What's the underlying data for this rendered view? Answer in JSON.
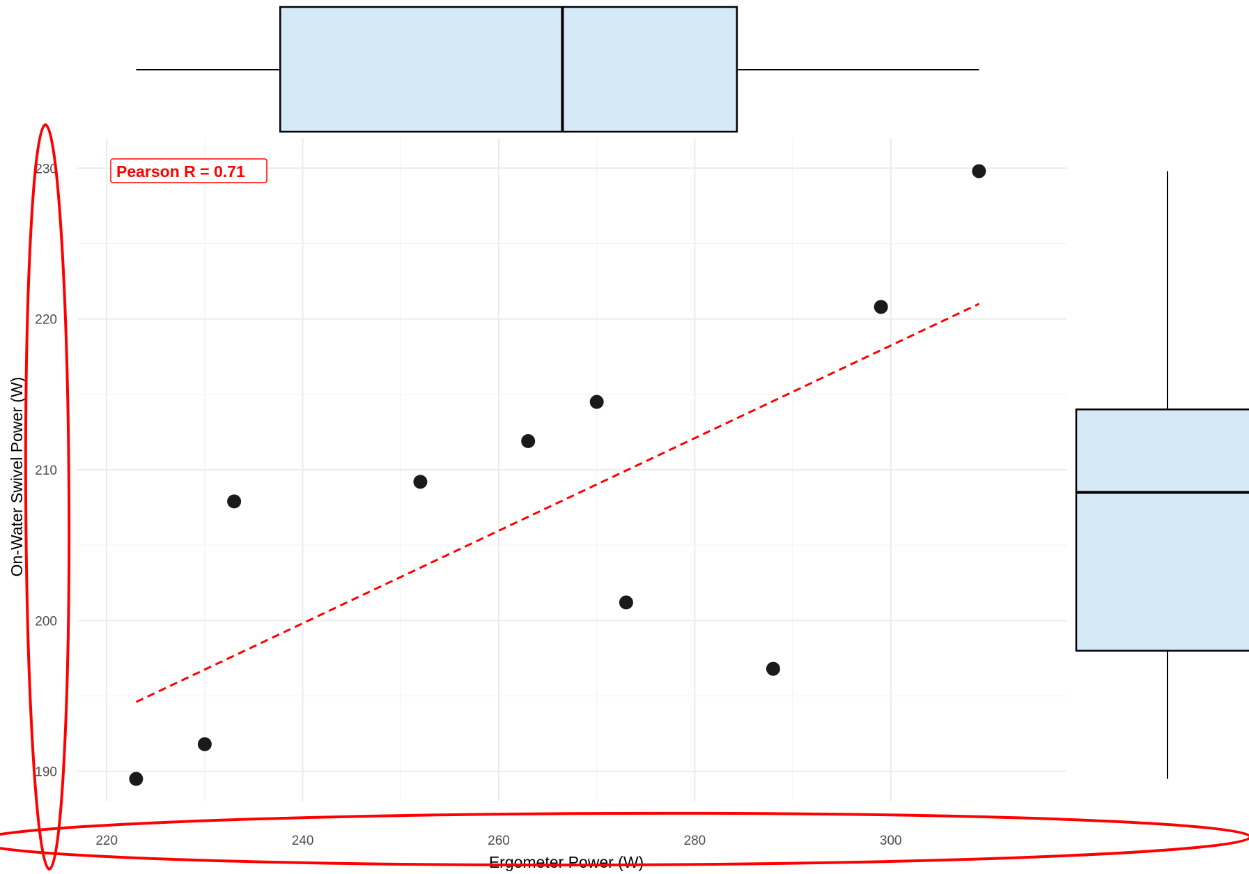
{
  "chart_data": [
    {
      "type": "scatter",
      "title": "",
      "xlabel": "Ergometer Power (W)",
      "ylabel": "On-Water Swivel Power (W)",
      "xlim": [
        217,
        318
      ],
      "ylim": [
        188,
        232
      ],
      "x_ticks": [
        220,
        240,
        260,
        280,
        300
      ],
      "y_ticks": [
        190,
        200,
        210,
        220,
        230
      ],
      "grid": true,
      "series": [
        {
          "x": [
            223,
            230,
            233,
            252,
            263,
            270,
            273,
            288,
            299,
            309
          ],
          "y": [
            189.5,
            191.8,
            207.9,
            209.2,
            211.9,
            214.5,
            201.2,
            196.8,
            220.8,
            229.8
          ],
          "color": "#1a1a1a"
        }
      ],
      "trendline": {
        "style": "dashed",
        "color": "#ff0000",
        "x": [
          223,
          309
        ],
        "y": [
          194.6,
          221.0
        ]
      },
      "annotation": {
        "text": "Pearson R = 0.71",
        "color": "#ff0000",
        "placement": "top-left"
      }
    },
    {
      "type": "box",
      "orientation": "horizontal",
      "variable": "Ergometer Power (W)",
      "whisker_low": 223,
      "q1": 237.7,
      "median": 266.5,
      "q3": 284.3,
      "whisker_high": 309,
      "fill": "#d6e9f7"
    },
    {
      "type": "box",
      "orientation": "vertical",
      "variable": "On-Water Swivel Power (W)",
      "whisker_low": 189.5,
      "q1": 198,
      "median": 208.5,
      "q3": 214,
      "whisker_high": 229.8,
      "fill": "#d6e9f7"
    }
  ],
  "highlights": {
    "color": "#ff0000"
  }
}
